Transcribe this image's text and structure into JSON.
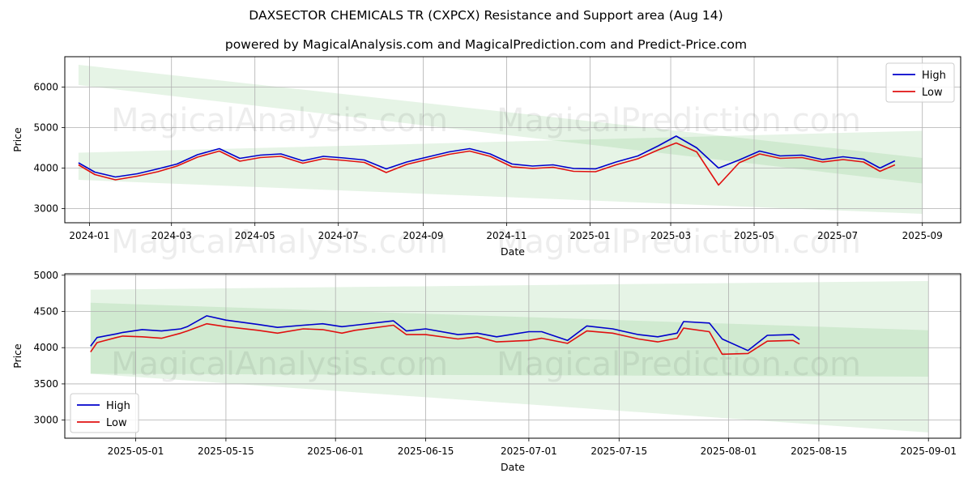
{
  "title": "DAXSECTOR CHEMICALS TR (CXPCX) Resistance and Support area (Aug 14)",
  "subtitle": "powered by MagicalAnalysis.com and MagicalPrediction.com and Predict-Price.com",
  "watermarks": [
    "MagicalAnalysis.com",
    "MagicalPrediction.com"
  ],
  "colors": {
    "high": "#0000cc",
    "low": "#e01010",
    "band": "#4caf50",
    "grid": "#b0b0b0"
  },
  "chart_data": [
    {
      "type": "line",
      "xlabel": "Date",
      "ylabel": "Price",
      "xlim": [
        "2023-12-14",
        "2025-09-29"
      ],
      "ylim": [
        2650,
        6750
      ],
      "xticks": [
        "2024-01",
        "2024-03",
        "2024-05",
        "2024-07",
        "2024-09",
        "2024-11",
        "2025-01",
        "2025-03",
        "2025-05",
        "2025-07",
        "2025-09"
      ],
      "yticks": [
        3000,
        4000,
        5000,
        6000
      ],
      "grid": true,
      "legend": {
        "position": "top-right",
        "entries": [
          "High",
          "Low"
        ]
      },
      "bands": [
        {
          "x": [
            "2023-12-24",
            "2025-09-01"
          ],
          "upper": [
            6550,
            4250
          ],
          "lower": [
            6050,
            3620
          ]
        },
        {
          "x": [
            "2023-12-24",
            "2025-09-01"
          ],
          "upper": [
            4380,
            4920
          ],
          "lower": [
            3710,
            2870
          ]
        }
      ],
      "series": [
        {
          "name": "High",
          "x": [
            "2023-12-24",
            "2024-01-05",
            "2024-01-20",
            "2024-02-05",
            "2024-02-20",
            "2024-03-05",
            "2024-03-20",
            "2024-04-05",
            "2024-04-20",
            "2024-05-05",
            "2024-05-20",
            "2024-06-05",
            "2024-06-20",
            "2024-07-05",
            "2024-07-20",
            "2024-08-05",
            "2024-08-20",
            "2024-09-05",
            "2024-09-20",
            "2024-10-05",
            "2024-10-20",
            "2024-11-05",
            "2024-11-20",
            "2024-12-05",
            "2024-12-20",
            "2025-01-05",
            "2025-01-20",
            "2025-02-05",
            "2025-02-20",
            "2025-03-05",
            "2025-03-20",
            "2025-04-05",
            "2025-04-20",
            "2025-05-05",
            "2025-05-20",
            "2025-06-05",
            "2025-06-20",
            "2025-07-05",
            "2025-07-20",
            "2025-08-01",
            "2025-08-12"
          ],
          "values": [
            4130,
            3900,
            3780,
            3860,
            3980,
            4100,
            4330,
            4480,
            4240,
            4320,
            4350,
            4180,
            4290,
            4250,
            4200,
            3980,
            4150,
            4280,
            4400,
            4480,
            4350,
            4100,
            4050,
            4080,
            3990,
            3980,
            4150,
            4300,
            4550,
            4790,
            4500,
            4000,
            4200,
            4420,
            4300,
            4320,
            4210,
            4280,
            4220,
            4000,
            4180
          ]
        },
        {
          "name": "Low",
          "x": [
            "2023-12-24",
            "2024-01-05",
            "2024-01-20",
            "2024-02-05",
            "2024-02-20",
            "2024-03-05",
            "2024-03-20",
            "2024-04-05",
            "2024-04-20",
            "2024-05-05",
            "2024-05-20",
            "2024-06-05",
            "2024-06-20",
            "2024-07-05",
            "2024-07-20",
            "2024-08-05",
            "2024-08-20",
            "2024-09-05",
            "2024-09-20",
            "2024-10-05",
            "2024-10-20",
            "2024-11-05",
            "2024-11-20",
            "2024-12-05",
            "2024-12-20",
            "2025-01-05",
            "2025-01-20",
            "2025-02-05",
            "2025-02-20",
            "2025-03-05",
            "2025-03-20",
            "2025-04-05",
            "2025-04-20",
            "2025-05-05",
            "2025-05-20",
            "2025-06-05",
            "2025-06-20",
            "2025-07-05",
            "2025-07-20",
            "2025-08-01",
            "2025-08-12"
          ],
          "values": [
            4080,
            3840,
            3710,
            3800,
            3910,
            4050,
            4270,
            4420,
            4170,
            4260,
            4290,
            4120,
            4230,
            4190,
            4140,
            3890,
            4090,
            4220,
            4340,
            4420,
            4290,
            4030,
            3990,
            4020,
            3920,
            3910,
            4080,
            4230,
            4450,
            4620,
            4400,
            3580,
            4130,
            4350,
            4240,
            4260,
            4150,
            4210,
            4150,
            3920,
            4080
          ]
        }
      ]
    },
    {
      "type": "line",
      "xlabel": "Date",
      "ylabel": "Price",
      "xlim": [
        "2025-04-20",
        "2025-09-06"
      ],
      "ylim": [
        2750,
        5020
      ],
      "xticks": [
        "2025-05-01",
        "2025-05-15",
        "2025-06-01",
        "2025-06-15",
        "2025-07-01",
        "2025-07-15",
        "2025-08-01",
        "2025-08-15",
        "2025-09-01"
      ],
      "yticks": [
        3000,
        3500,
        4000,
        4500,
        5000
      ],
      "grid": true,
      "legend": {
        "position": "bottom-left",
        "entries": [
          "High",
          "Low"
        ]
      },
      "bands": [
        {
          "x": [
            "2025-04-24",
            "2025-09-01"
          ],
          "upper": [
            4620,
            4240
          ],
          "lower": [
            3640,
            3600
          ]
        },
        {
          "x": [
            "2025-04-24",
            "2025-09-01"
          ],
          "upper": [
            4800,
            4920
          ],
          "lower": [
            3640,
            2830
          ]
        }
      ],
      "series": [
        {
          "name": "High",
          "x": [
            "2025-04-24",
            "2025-04-25",
            "2025-04-28",
            "2025-04-29",
            "2025-05-02",
            "2025-05-05",
            "2025-05-08",
            "2025-05-09",
            "2025-05-12",
            "2025-05-15",
            "2025-05-20",
            "2025-05-23",
            "2025-05-27",
            "2025-05-30",
            "2025-06-02",
            "2025-06-04",
            "2025-06-10",
            "2025-06-12",
            "2025-06-15",
            "2025-06-20",
            "2025-06-23",
            "2025-06-26",
            "2025-07-01",
            "2025-07-03",
            "2025-07-07",
            "2025-07-10",
            "2025-07-14",
            "2025-07-18",
            "2025-07-21",
            "2025-07-24",
            "2025-07-25",
            "2025-07-29",
            "2025-07-31",
            "2025-08-04",
            "2025-08-07",
            "2025-08-11",
            "2025-08-12"
          ],
          "values": [
            4020,
            4140,
            4190,
            4210,
            4250,
            4230,
            4260,
            4290,
            4440,
            4380,
            4320,
            4280,
            4310,
            4330,
            4290,
            4310,
            4370,
            4230,
            4260,
            4180,
            4200,
            4150,
            4220,
            4220,
            4100,
            4300,
            4260,
            4180,
            4150,
            4200,
            4360,
            4340,
            4120,
            3960,
            4170,
            4180,
            4110
          ]
        },
        {
          "name": "Low",
          "x": [
            "2025-04-24",
            "2025-04-25",
            "2025-04-28",
            "2025-04-29",
            "2025-05-02",
            "2025-05-05",
            "2025-05-08",
            "2025-05-09",
            "2025-05-12",
            "2025-05-15",
            "2025-05-20",
            "2025-05-23",
            "2025-05-27",
            "2025-05-30",
            "2025-06-02",
            "2025-06-04",
            "2025-06-10",
            "2025-06-12",
            "2025-06-15",
            "2025-06-20",
            "2025-06-23",
            "2025-06-26",
            "2025-07-01",
            "2025-07-03",
            "2025-07-07",
            "2025-07-10",
            "2025-07-14",
            "2025-07-18",
            "2025-07-21",
            "2025-07-24",
            "2025-07-25",
            "2025-07-29",
            "2025-07-31",
            "2025-08-04",
            "2025-08-07",
            "2025-08-11",
            "2025-08-12"
          ],
          "values": [
            3940,
            4070,
            4140,
            4160,
            4150,
            4130,
            4200,
            4230,
            4330,
            4290,
            4240,
            4200,
            4260,
            4250,
            4200,
            4240,
            4310,
            4180,
            4180,
            4120,
            4150,
            4080,
            4100,
            4130,
            4060,
            4230,
            4200,
            4120,
            4080,
            4130,
            4270,
            4220,
            3910,
            3920,
            4090,
            4100,
            4050
          ]
        }
      ]
    }
  ]
}
